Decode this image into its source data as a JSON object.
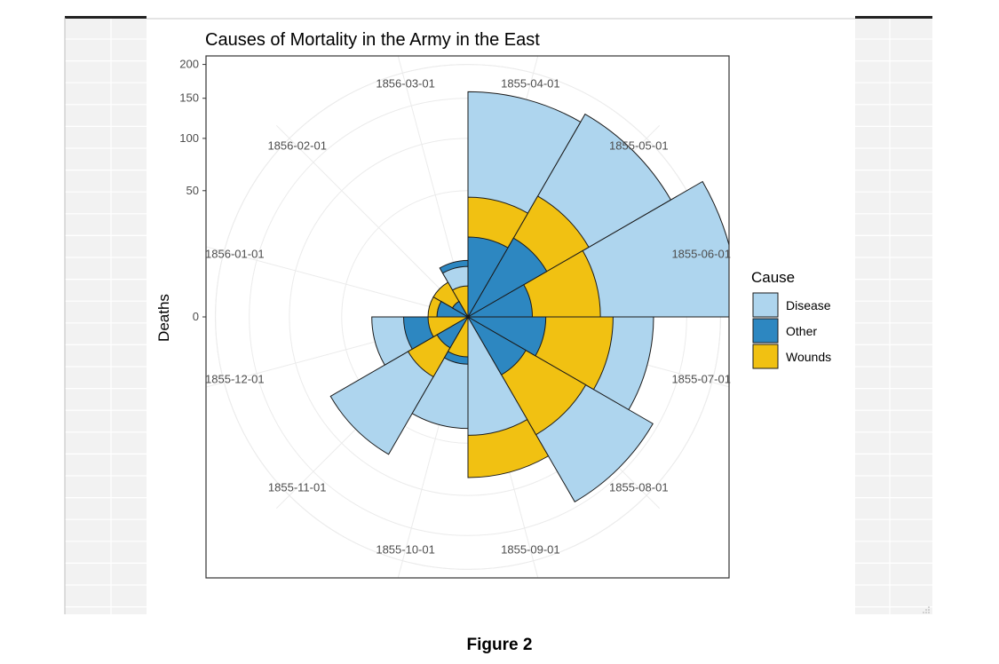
{
  "figure_caption": "Figure 2",
  "colors": {
    "Disease": "#aed5ee",
    "Other": "#2d87c1",
    "Wounds": "#f1c112",
    "panel_border": "#333333",
    "grid": "#ebebeb",
    "background_cells": "#f2f2f2"
  },
  "chart_data": {
    "type": "polar-area",
    "title": "Causes of Mortality in the Army in the East",
    "ylabel": "Deaths",
    "y_ticks": [
      0,
      50,
      100,
      150,
      200
    ],
    "y_scale": "sqrt",
    "ylim": [
      0,
      230
    ],
    "grid": true,
    "legend_title": "Cause",
    "legend_position": "right",
    "months": [
      "1855-04-01",
      "1855-05-01",
      "1855-06-01",
      "1855-07-01",
      "1855-08-01",
      "1855-09-01",
      "1855-10-01",
      "1855-11-01",
      "1855-12-01",
      "1856-01-01",
      "1856-02-01",
      "1856-03-01"
    ],
    "series": [
      {
        "name": "Disease",
        "values": [
          159,
          172,
          230,
          108,
          143,
          44,
          39,
          79,
          29,
          3,
          1,
          8
        ]
      },
      {
        "name": "Other",
        "values": [
          20,
          26,
          13,
          19,
          14,
          0,
          7,
          4,
          13,
          3,
          1,
          10
        ]
      },
      {
        "name": "Wounds",
        "values": [
          45,
          61,
          55,
          66,
          58,
          81,
          5,
          15,
          5,
          5,
          5,
          3
        ]
      }
    ]
  }
}
